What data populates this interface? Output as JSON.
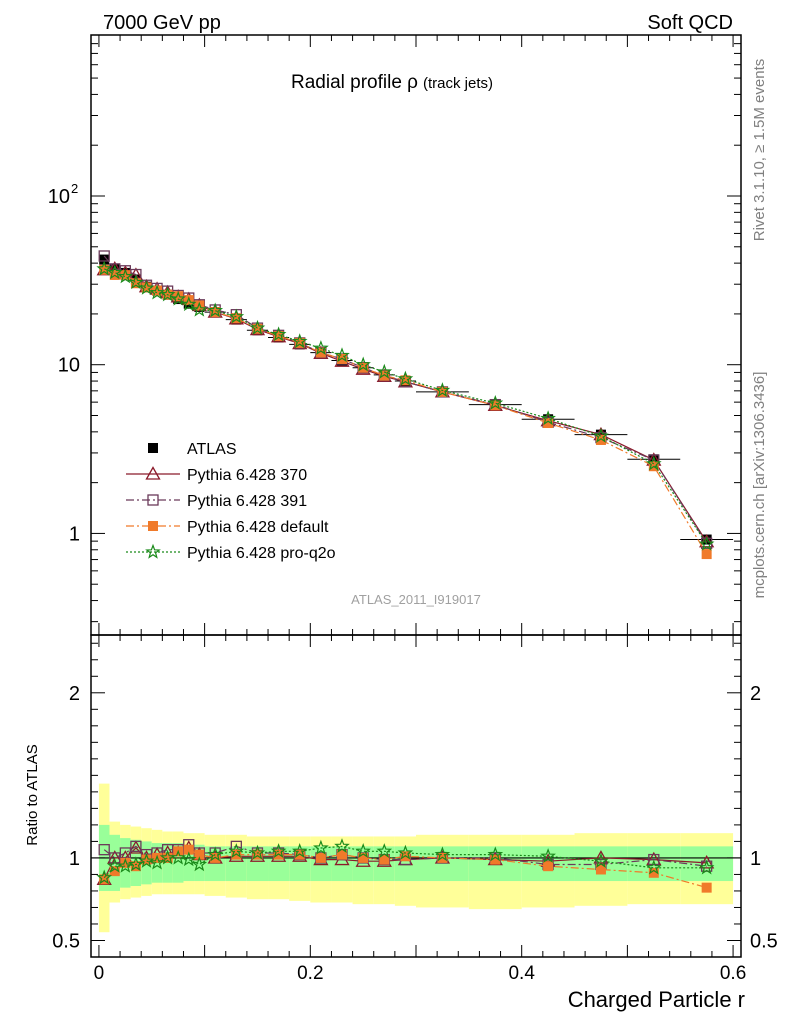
{
  "header": {
    "left": "7000 GeV pp",
    "right": "Soft QCD"
  },
  "side_labels": {
    "rivet": "Rivet 3.1.10, ≥ 1.5M events",
    "mcplots": "mcplots.cern.ch [arXiv:1306.3436]"
  },
  "main_plot": {
    "title_main": "Radial profile ρ",
    "title_sub": "(track jets)",
    "watermark": "ATLAS_2011_I919017",
    "y_scale": "log",
    "ylim": [
      0.25,
      900
    ],
    "y_ticks": [
      {
        "value": 1,
        "label": "1"
      },
      {
        "value": 10,
        "label": "10"
      },
      {
        "value": 100,
        "label": "10",
        "sup": "2"
      }
    ]
  },
  "ratio_plot": {
    "ylabel": "Ratio to ATLAS",
    "ylim": [
      0.4,
      2.35
    ],
    "y_ticks": [
      {
        "value": 0.5,
        "label": "0.5"
      },
      {
        "value": 1,
        "label": "1"
      },
      {
        "value": 2,
        "label": "2"
      }
    ]
  },
  "x_axis": {
    "label": "Charged Particle r",
    "xlim": [
      -0.0075,
      0.6075
    ],
    "ticks": [
      {
        "value": 0,
        "label": "0"
      },
      {
        "value": 0.2,
        "label": "0.2"
      },
      {
        "value": 0.4,
        "label": "0.4"
      },
      {
        "value": 0.6,
        "label": "0.6"
      }
    ]
  },
  "legend": [
    {
      "label": "ATLAS",
      "color": "#000000",
      "marker": "filled-square",
      "dash": "none"
    },
    {
      "label": "Pythia 6.428 370",
      "color": "#8b1a2a",
      "marker": "open-triangle",
      "dash": "solid"
    },
    {
      "label": "Pythia 6.428 391",
      "color": "#6b3a5a",
      "marker": "open-square",
      "dash": "dashdot"
    },
    {
      "label": "Pythia 6.428 default",
      "color": "#f07a2a",
      "marker": "filled-square",
      "dash": "dashdot"
    },
    {
      "label": "Pythia 6.428 pro-q2o",
      "color": "#1a8a1a",
      "marker": "star",
      "dash": "dotted"
    }
  ],
  "chart_data": {
    "type": "line",
    "x": [
      0.005,
      0.015,
      0.025,
      0.035,
      0.045,
      0.055,
      0.065,
      0.075,
      0.085,
      0.095,
      0.11,
      0.13,
      0.15,
      0.17,
      0.19,
      0.21,
      0.23,
      0.25,
      0.27,
      0.29,
      0.325,
      0.375,
      0.425,
      0.475,
      0.525,
      0.575
    ],
    "x_err": [
      0.005,
      0.005,
      0.005,
      0.005,
      0.005,
      0.005,
      0.005,
      0.005,
      0.005,
      0.005,
      0.01,
      0.01,
      0.01,
      0.01,
      0.01,
      0.01,
      0.01,
      0.01,
      0.01,
      0.01,
      0.025,
      0.025,
      0.025,
      0.025,
      0.025,
      0.025
    ],
    "data": {
      "name": "ATLAS",
      "values": [
        42,
        37,
        35,
        32,
        29,
        27.5,
        26,
        24.5,
        23,
        22,
        20.5,
        18.5,
        16,
        14.5,
        13.2,
        11.8,
        10.6,
        9.6,
        8.7,
        8.0,
        6.9,
        5.8,
        4.75,
        3.85,
        2.75,
        0.92
      ],
      "band_inner": [
        [
          0.8,
          1.2
        ],
        [
          0.8,
          1.14
        ],
        [
          0.82,
          1.12
        ],
        [
          0.83,
          1.11
        ],
        [
          0.84,
          1.1
        ],
        [
          0.85,
          1.09
        ],
        [
          0.85,
          1.09
        ],
        [
          0.85,
          1.09
        ],
        [
          0.86,
          1.08
        ],
        [
          0.86,
          1.08
        ],
        [
          0.86,
          1.07
        ],
        [
          0.86,
          1.07
        ],
        [
          0.86,
          1.07
        ],
        [
          0.86,
          1.07
        ],
        [
          0.86,
          1.07
        ],
        [
          0.86,
          1.07
        ],
        [
          0.86,
          1.07
        ],
        [
          0.86,
          1.07
        ],
        [
          0.86,
          1.07
        ],
        [
          0.86,
          1.07
        ],
        [
          0.86,
          1.07
        ],
        [
          0.86,
          1.07
        ],
        [
          0.86,
          1.07
        ],
        [
          0.86,
          1.07
        ],
        [
          0.86,
          1.07
        ],
        [
          0.86,
          1.07
        ]
      ],
      "band_outer": [
        [
          0.55,
          1.45
        ],
        [
          0.73,
          1.22
        ],
        [
          0.75,
          1.2
        ],
        [
          0.76,
          1.19
        ],
        [
          0.77,
          1.18
        ],
        [
          0.78,
          1.17
        ],
        [
          0.78,
          1.16
        ],
        [
          0.78,
          1.16
        ],
        [
          0.78,
          1.15
        ],
        [
          0.78,
          1.15
        ],
        [
          0.77,
          1.14
        ],
        [
          0.76,
          1.14
        ],
        [
          0.75,
          1.13
        ],
        [
          0.75,
          1.13
        ],
        [
          0.74,
          1.13
        ],
        [
          0.73,
          1.13
        ],
        [
          0.73,
          1.13
        ],
        [
          0.72,
          1.13
        ],
        [
          0.72,
          1.13
        ],
        [
          0.71,
          1.13
        ],
        [
          0.7,
          1.14
        ],
        [
          0.69,
          1.14
        ],
        [
          0.7,
          1.14
        ],
        [
          0.71,
          1.15
        ],
        [
          0.72,
          1.15
        ],
        [
          0.72,
          1.15
        ]
      ]
    },
    "series": [
      {
        "name": "Pythia 6.428 370",
        "ratio": [
          0.87,
          1.0,
          1.0,
          1.06,
          1.0,
          1.02,
          1.03,
          1.03,
          1.06,
          1.02,
          1.0,
          1.01,
          1.01,
          1.01,
          1.01,
          0.99,
          0.99,
          0.98,
          0.98,
          0.99,
          1.0,
          0.99,
          0.98,
          1.0,
          0.99,
          0.97
        ]
      },
      {
        "name": "Pythia 6.428 391",
        "ratio": [
          1.05,
          1.0,
          1.03,
          1.07,
          1.02,
          1.03,
          1.05,
          1.05,
          1.08,
          1.03,
          1.03,
          1.07,
          1.03,
          1.03,
          1.02,
          1.0,
          1.02,
          1.0,
          0.99,
          0.99,
          1.0,
          1.0,
          0.96,
          0.96,
          0.99,
          0.95
        ]
      },
      {
        "name": "Pythia 6.428 default",
        "ratio": [
          0.87,
          0.92,
          0.97,
          0.95,
          0.99,
          1.0,
          1.0,
          1.04,
          1.05,
          1.02,
          1.0,
          1.02,
          1.02,
          1.02,
          1.02,
          1.0,
          1.02,
          1.0,
          0.99,
          1.01,
          1.0,
          0.99,
          0.95,
          0.93,
          0.91,
          0.82
        ]
      },
      {
        "name": "Pythia 6.428 pro-q2o",
        "ratio": [
          0.88,
          0.95,
          0.95,
          0.96,
          0.98,
          0.97,
          1.0,
          1.0,
          0.99,
          0.96,
          1.02,
          1.04,
          1.03,
          1.04,
          1.04,
          1.06,
          1.07,
          1.04,
          1.04,
          1.03,
          1.02,
          1.02,
          1.01,
          0.98,
          0.94,
          0.94
        ]
      }
    ]
  }
}
